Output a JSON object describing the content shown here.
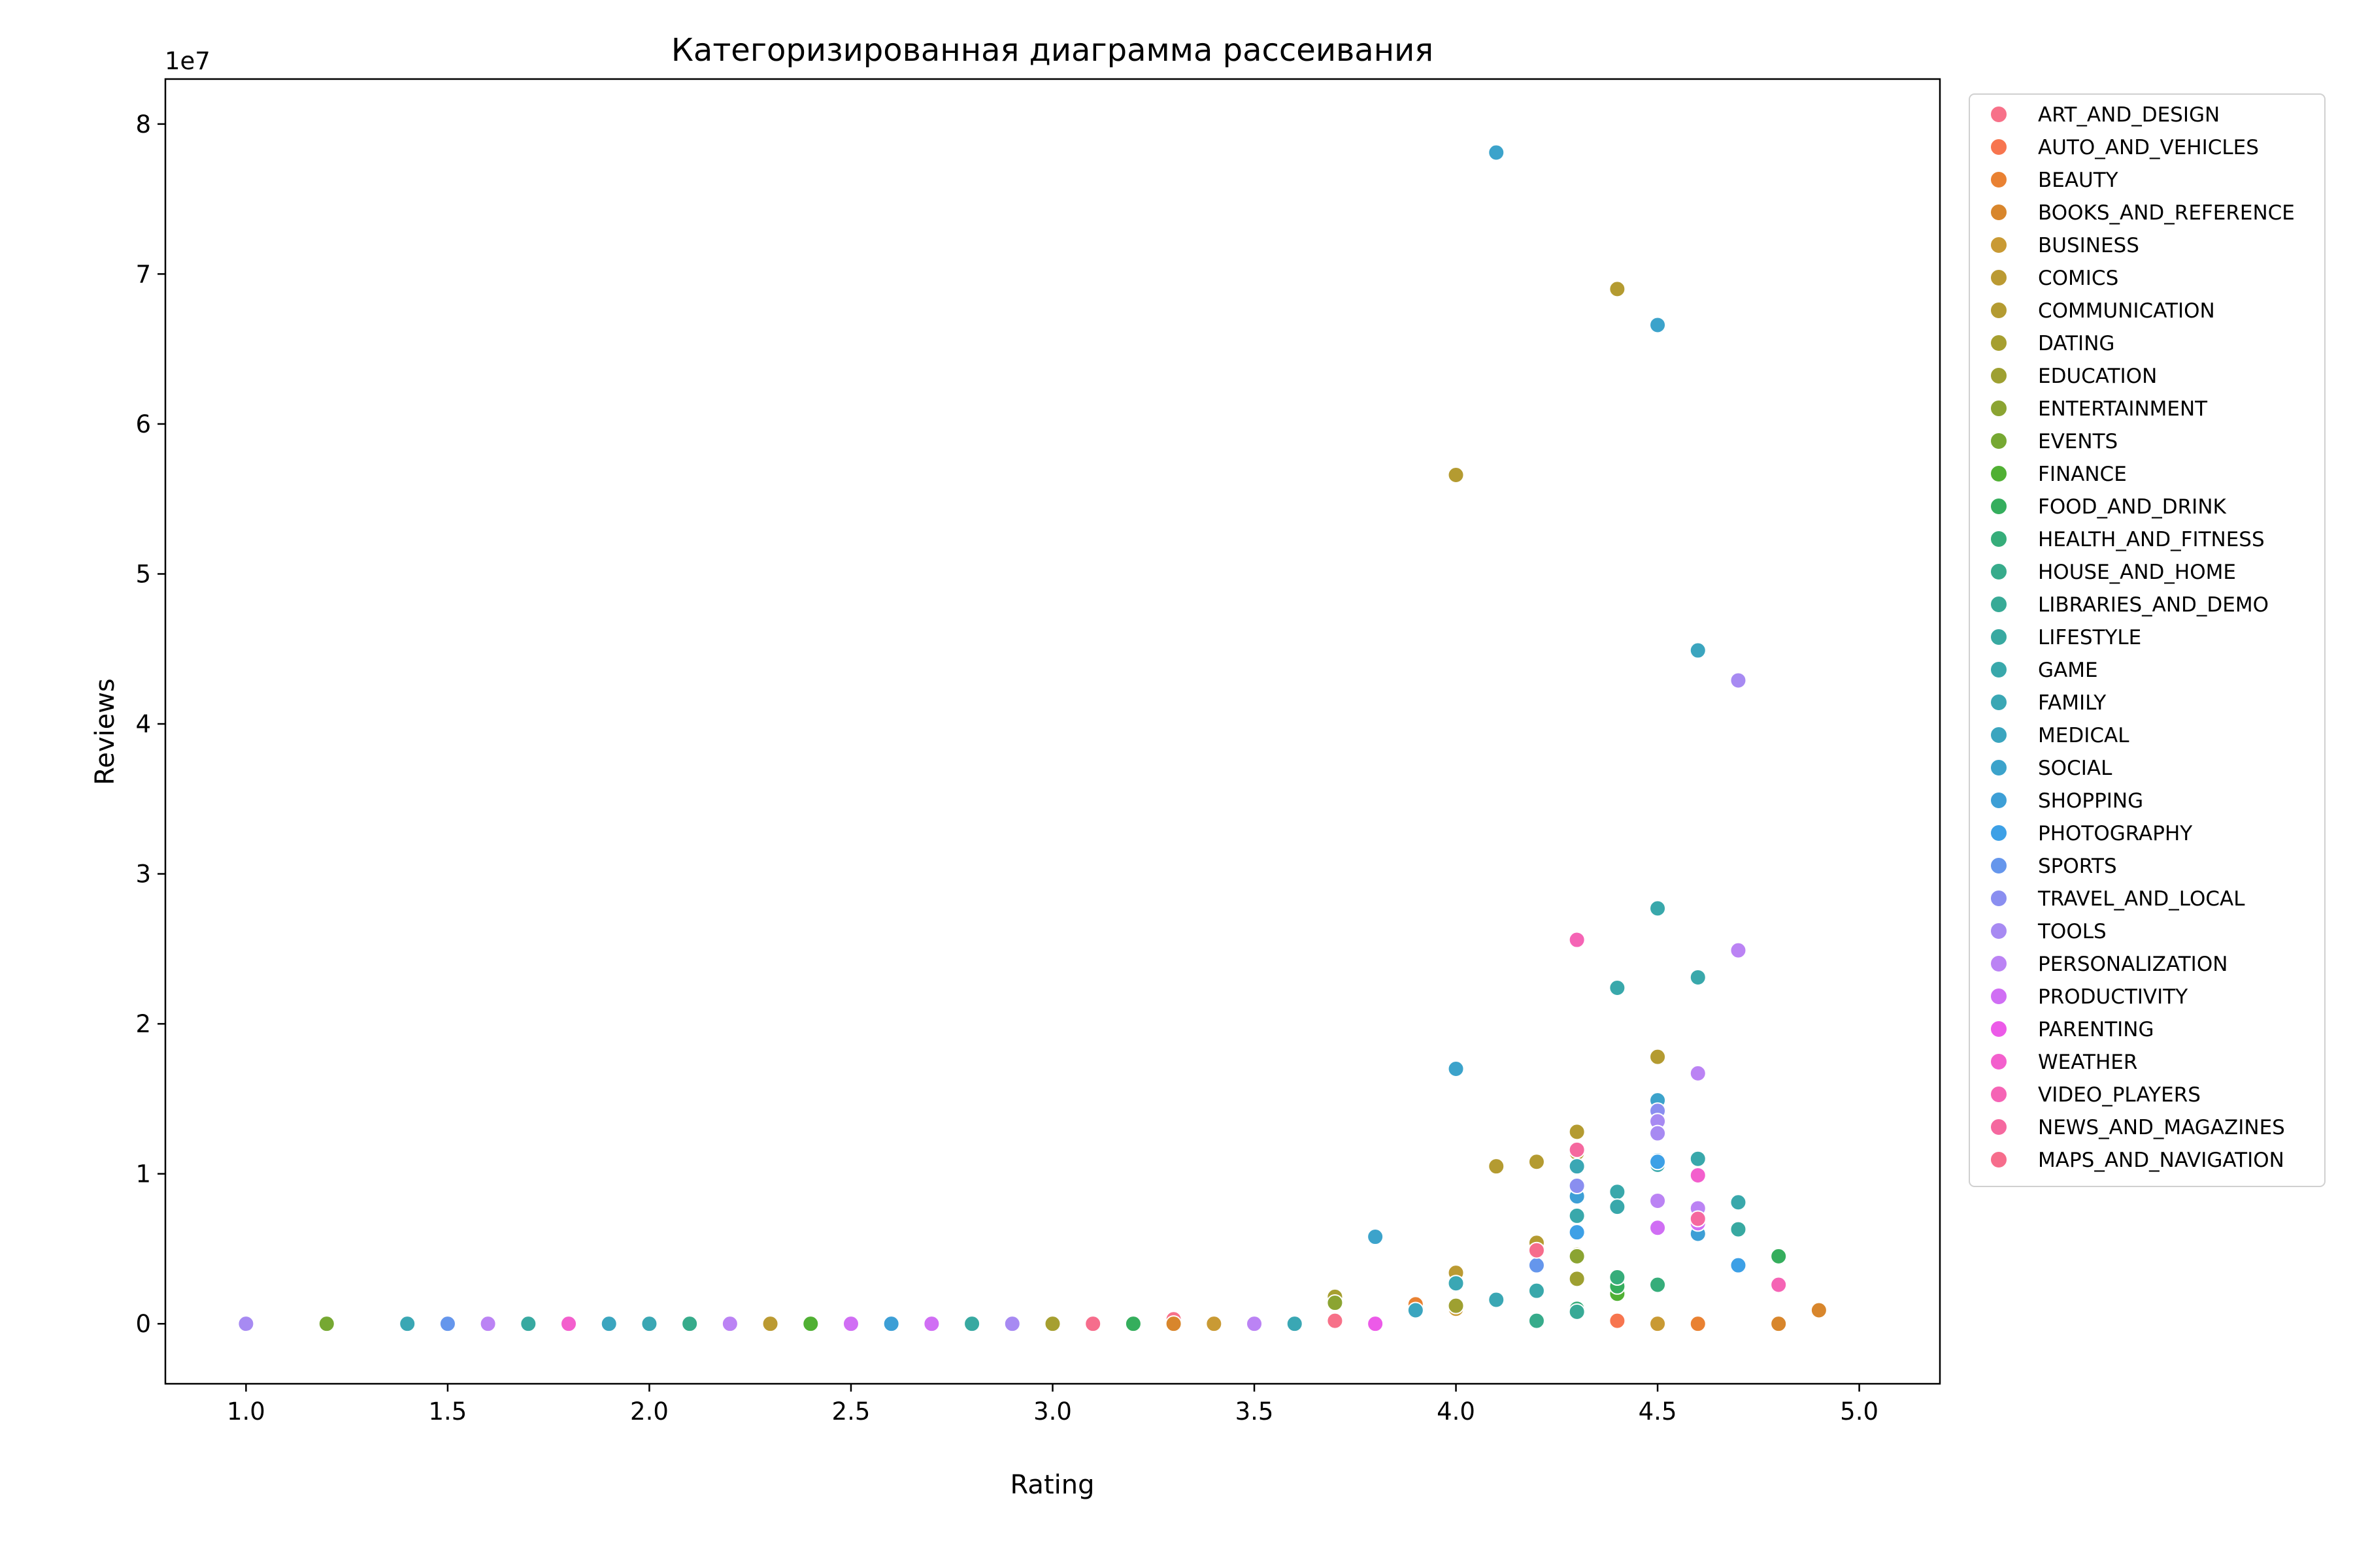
{
  "chart_data": {
    "type": "scatter",
    "title": "Категоризированная диаграмма рассеивания",
    "xlabel": "Rating",
    "ylabel": "Reviews",
    "y_offset_label": "1e7",
    "xlim": [
      0.8,
      5.2
    ],
    "ylim": [
      -4000000,
      83000000
    ],
    "x_ticks": [
      1.0,
      1.5,
      2.0,
      2.5,
      3.0,
      3.5,
      4.0,
      4.5,
      5.0
    ],
    "x_tick_labels": [
      "1.0",
      "1.5",
      "2.0",
      "2.5",
      "3.0",
      "3.5",
      "4.0",
      "4.5",
      "5.0"
    ],
    "y_ticks": [
      0,
      10000000,
      20000000,
      30000000,
      40000000,
      50000000,
      60000000,
      70000000,
      80000000
    ],
    "y_tick_labels": [
      "0",
      "1",
      "2",
      "3",
      "4",
      "5",
      "6",
      "7",
      "8"
    ],
    "grid": false,
    "legend_position": "right",
    "series": [
      {
        "name": "ART_AND_DESIGN",
        "color": "#f77189",
        "points": [
          [
            3.3,
            300000
          ],
          [
            3.7,
            200000
          ]
        ]
      },
      {
        "name": "AUTO_AND_VEHICLES",
        "color": "#f7754f",
        "points": [
          [
            3.9,
            1000000
          ],
          [
            4.4,
            200000
          ]
        ]
      },
      {
        "name": "BEAUTY",
        "color": "#e98132",
        "points": [
          [
            3.9,
            1300000
          ],
          [
            4.6,
            0
          ]
        ]
      },
      {
        "name": "BOOKS_AND_REFERENCE",
        "color": "#d8862c",
        "points": [
          [
            4.9,
            900000
          ],
          [
            4.8,
            0
          ],
          [
            3.3,
            0
          ]
        ]
      },
      {
        "name": "BUSINESS",
        "color": "#c99a34",
        "points": [
          [
            3.4,
            0
          ],
          [
            4.0,
            1000000
          ],
          [
            4.5,
            0
          ]
        ]
      },
      {
        "name": "COMICS",
        "color": "#bb9a32",
        "points": [
          [
            2.3,
            0
          ],
          [
            4.0,
            3400000
          ]
        ]
      },
      {
        "name": "COMMUNICATION",
        "color": "#b49b31",
        "points": [
          [
            4.4,
            69000000
          ],
          [
            4.0,
            56600000
          ],
          [
            4.5,
            17800000
          ],
          [
            4.3,
            12800000
          ],
          [
            4.3,
            11400000
          ],
          [
            4.2,
            10800000
          ],
          [
            4.1,
            10500000
          ],
          [
            4.2,
            5400000
          ]
        ]
      },
      {
        "name": "DATING",
        "color": "#a69f30",
        "points": [
          [
            3.0,
            0
          ],
          [
            3.7,
            1800000
          ],
          [
            4.3,
            4600000
          ]
        ]
      },
      {
        "name": "EDUCATION",
        "color": "#9ea031",
        "points": [
          [
            4.0,
            1200000
          ],
          [
            4.3,
            3000000
          ]
        ]
      },
      {
        "name": "ENTERTAINMENT",
        "color": "#8ba432",
        "points": [
          [
            3.7,
            1400000
          ],
          [
            4.3,
            4500000
          ]
        ]
      },
      {
        "name": "EVENTS",
        "color": "#76a832",
        "points": [
          [
            1.2,
            0
          ],
          [
            2.4,
            0
          ]
        ]
      },
      {
        "name": "FINANCE",
        "color": "#50b033",
        "points": [
          [
            2.4,
            0
          ],
          [
            4.4,
            2000000
          ]
        ]
      },
      {
        "name": "FOOD_AND_DRINK",
        "color": "#35ae5d",
        "points": [
          [
            3.2,
            0
          ],
          [
            4.8,
            4500000
          ],
          [
            4.4,
            2500000
          ]
        ]
      },
      {
        "name": "HEALTH_AND_FITNESS",
        "color": "#36ad7a",
        "points": [
          [
            4.4,
            3100000
          ],
          [
            4.5,
            2600000
          ],
          [
            4.3,
            1000000
          ]
        ]
      },
      {
        "name": "HOUSE_AND_HOME",
        "color": "#37ab8b",
        "points": [
          [
            2.1,
            0
          ],
          [
            4.2,
            200000
          ]
        ]
      },
      {
        "name": "LIBRARIES_AND_DEMO",
        "color": "#38aa96",
        "points": [
          [
            1.7,
            0
          ],
          [
            4.3,
            800000
          ]
        ]
      },
      {
        "name": "LIFESTYLE",
        "color": "#38a9a1",
        "points": [
          [
            1.7,
            0
          ],
          [
            2.8,
            0
          ],
          [
            4.7,
            6300000
          ]
        ]
      },
      {
        "name": "GAME",
        "color": "#39a8ab",
        "points": [
          [
            4.5,
            27700000
          ],
          [
            4.6,
            23100000
          ],
          [
            4.4,
            22400000
          ],
          [
            4.4,
            8800000
          ],
          [
            4.5,
            10600000
          ],
          [
            4.3,
            7200000
          ],
          [
            4.7,
            8100000
          ],
          [
            4.6,
            11000000
          ],
          [
            4.4,
            7800000
          ],
          [
            4.2,
            2200000
          ]
        ]
      },
      {
        "name": "FAMILY",
        "color": "#3aa7b4",
        "points": [
          [
            1.4,
            0
          ],
          [
            1.9,
            0
          ],
          [
            2.0,
            0
          ],
          [
            3.6,
            0
          ],
          [
            4.0,
            2700000
          ],
          [
            4.1,
            1600000
          ],
          [
            4.3,
            10500000
          ]
        ]
      },
      {
        "name": "MEDICAL",
        "color": "#3ba5bf",
        "points": [
          [
            4.6,
            44900000
          ],
          [
            1.9,
            0
          ],
          [
            3.9,
            900000
          ]
        ]
      },
      {
        "name": "SOCIAL",
        "color": "#3ca3cb",
        "points": [
          [
            4.1,
            78100000
          ],
          [
            4.5,
            66600000
          ],
          [
            4.0,
            17000000
          ],
          [
            3.8,
            5800000
          ],
          [
            4.5,
            14900000
          ]
        ]
      },
      {
        "name": "SHOPPING",
        "color": "#3d9fd6",
        "points": [
          [
            4.5,
            10900000
          ],
          [
            4.6,
            6000000
          ],
          [
            4.3,
            8500000
          ],
          [
            2.6,
            0
          ]
        ]
      },
      {
        "name": "PHOTOGRAPHY",
        "color": "#3da0e6",
        "points": [
          [
            4.5,
            10800000
          ],
          [
            4.3,
            6100000
          ],
          [
            4.7,
            3900000
          ]
        ]
      },
      {
        "name": "SPORTS",
        "color": "#6596ec",
        "points": [
          [
            1.5,
            0
          ],
          [
            4.2,
            3900000
          ]
        ]
      },
      {
        "name": "TRAVEL_AND_LOCAL",
        "color": "#8a8ef0",
        "points": [
          [
            4.5,
            14200000
          ],
          [
            4.3,
            9200000
          ]
        ]
      },
      {
        "name": "TOOLS",
        "color": "#a78af2",
        "points": [
          [
            4.7,
            42900000
          ],
          [
            4.5,
            13500000
          ],
          [
            4.5,
            12700000
          ],
          [
            1.0,
            0
          ],
          [
            2.9,
            0
          ]
        ]
      },
      {
        "name": "PERSONALIZATION",
        "color": "#bb83f4",
        "points": [
          [
            4.7,
            24900000
          ],
          [
            4.6,
            16700000
          ],
          [
            4.5,
            8200000
          ],
          [
            4.6,
            7700000
          ],
          [
            2.2,
            0
          ],
          [
            3.5,
            0
          ],
          [
            1.6,
            0
          ]
        ]
      },
      {
        "name": "PRODUCTIVITY",
        "color": "#d06ef4",
        "points": [
          [
            4.6,
            6700000
          ],
          [
            4.5,
            6400000
          ],
          [
            2.5,
            0
          ],
          [
            2.7,
            0
          ]
        ]
      },
      {
        "name": "PARENTING",
        "color": "#ec5ae8",
        "points": [
          [
            3.8,
            0
          ]
        ]
      },
      {
        "name": "WEATHER",
        "color": "#f35fcd",
        "points": [
          [
            4.6,
            9900000
          ],
          [
            1.8,
            0
          ]
        ]
      },
      {
        "name": "VIDEO_PLAYERS",
        "color": "#f564b5",
        "points": [
          [
            4.3,
            25600000
          ],
          [
            4.8,
            2600000
          ],
          [
            3.1,
            0
          ]
        ]
      },
      {
        "name": "NEWS_AND_MAGAZINES",
        "color": "#f5689f",
        "points": [
          [
            4.6,
            7000000
          ],
          [
            4.3,
            11600000
          ]
        ]
      },
      {
        "name": "MAPS_AND_NAVIGATION",
        "color": "#f66d8c",
        "points": [
          [
            4.2,
            4900000
          ],
          [
            3.1,
            0
          ]
        ]
      }
    ]
  }
}
